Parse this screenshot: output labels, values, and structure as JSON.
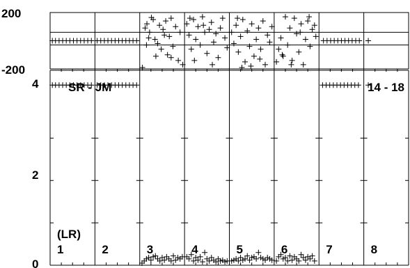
{
  "chart_data": {
    "type": "scatter",
    "panels": 8,
    "top_strip": {
      "ylim": [
        -200,
        200
      ],
      "yticks": [
        "200",
        "-200"
      ],
      "reference_lines": [
        60,
        -30
      ],
      "series": [
        {
          "panel": 1,
          "points": [
            [
              0.05,
              0
            ],
            [
              0.12,
              0
            ],
            [
              0.2,
              0
            ],
            [
              0.28,
              0
            ],
            [
              0.36,
              0
            ],
            [
              0.44,
              0
            ],
            [
              0.52,
              0
            ],
            [
              0.6,
              0
            ],
            [
              0.68,
              0
            ],
            [
              0.76,
              0
            ],
            [
              0.84,
              0
            ],
            [
              0.92,
              0
            ]
          ]
        },
        {
          "panel": 2,
          "points": [
            [
              0.05,
              0
            ],
            [
              0.13,
              0
            ],
            [
              0.21,
              0
            ],
            [
              0.29,
              0
            ],
            [
              0.37,
              0
            ],
            [
              0.45,
              0
            ],
            [
              0.53,
              0
            ],
            [
              0.61,
              0
            ],
            [
              0.69,
              0
            ],
            [
              0.77,
              0
            ],
            [
              0.85,
              0
            ],
            [
              0.93,
              0
            ]
          ]
        },
        {
          "panel": 3,
          "points": [
            [
              0.06,
              -190
            ],
            [
              0.12,
              90
            ],
            [
              0.16,
              120
            ],
            [
              0.22,
              60
            ],
            [
              0.26,
              165
            ],
            [
              0.3,
              150
            ],
            [
              0.34,
              10
            ],
            [
              0.4,
              -20
            ],
            [
              0.44,
              110
            ],
            [
              0.48,
              -60
            ],
            [
              0.52,
              80
            ],
            [
              0.58,
              140
            ],
            [
              0.62,
              -100
            ],
            [
              0.66,
              30
            ],
            [
              0.7,
              160
            ],
            [
              0.74,
              -40
            ],
            [
              0.8,
              100
            ],
            [
              0.86,
              -140
            ],
            [
              0.9,
              60
            ],
            [
              0.15,
              -30
            ],
            [
              0.2,
              20
            ],
            [
              0.36,
              -110
            ],
            [
              0.55,
              40
            ],
            [
              0.7,
              -120
            ],
            [
              0.96,
              -170
            ]
          ]
        },
        {
          "panel": 4,
          "points": [
            [
              0.05,
              120
            ],
            [
              0.1,
              40
            ],
            [
              0.15,
              -60
            ],
            [
              0.2,
              150
            ],
            [
              0.25,
              10
            ],
            [
              0.3,
              100
            ],
            [
              0.35,
              -30
            ],
            [
              0.4,
              170
            ],
            [
              0.45,
              60
            ],
            [
              0.5,
              -90
            ],
            [
              0.55,
              80
            ],
            [
              0.6,
              130
            ],
            [
              0.65,
              -10
            ],
            [
              0.7,
              50
            ],
            [
              0.75,
              -120
            ],
            [
              0.8,
              90
            ],
            [
              0.85,
              160
            ],
            [
              0.9,
              20
            ],
            [
              0.95,
              -50
            ],
            [
              0.22,
              -140
            ],
            [
              0.62,
              -170
            ],
            [
              0.42,
              110
            ],
            [
              0.12,
              160
            ]
          ]
        },
        {
          "panel": 5,
          "points": [
            [
              0.05,
              60
            ],
            [
              0.1,
              -20
            ],
            [
              0.15,
              110
            ],
            [
              0.2,
              -80
            ],
            [
              0.25,
              30
            ],
            [
              0.3,
              150
            ],
            [
              0.35,
              -150
            ],
            [
              0.4,
              70
            ],
            [
              0.45,
              -40
            ],
            [
              0.5,
              120
            ],
            [
              0.55,
              -110
            ],
            [
              0.6,
              10
            ],
            [
              0.65,
              90
            ],
            [
              0.7,
              -60
            ],
            [
              0.75,
              140
            ],
            [
              0.8,
              -170
            ],
            [
              0.85,
              40
            ],
            [
              0.9,
              -10
            ],
            [
              0.95,
              100
            ],
            [
              0.28,
              -190
            ],
            [
              0.48,
              -180
            ],
            [
              0.68,
              -130
            ],
            [
              0.18,
              160
            ]
          ]
        },
        {
          "panel": 6,
          "points": [
            [
              0.05,
              -150
            ],
            [
              0.1,
              -60
            ],
            [
              0.15,
              20
            ],
            [
              0.2,
              -110
            ],
            [
              0.25,
              170
            ],
            [
              0.3,
              -30
            ],
            [
              0.35,
              90
            ],
            [
              0.4,
              -140
            ],
            [
              0.45,
              160
            ],
            [
              0.5,
              50
            ],
            [
              0.55,
              -80
            ],
            [
              0.6,
              120
            ],
            [
              0.65,
              -170
            ],
            [
              0.7,
              10
            ],
            [
              0.75,
              140
            ],
            [
              0.8,
              -40
            ],
            [
              0.85,
              80
            ],
            [
              0.9,
              110
            ],
            [
              0.93,
              30
            ],
            [
              0.58,
              60
            ],
            [
              0.38,
              -170
            ],
            [
              0.18,
              -100
            ],
            [
              0.78,
              170
            ]
          ]
        },
        {
          "panel": 7,
          "points": [
            [
              0.1,
              0
            ],
            [
              0.18,
              0
            ],
            [
              0.26,
              0
            ],
            [
              0.34,
              0
            ],
            [
              0.42,
              0
            ],
            [
              0.5,
              0
            ],
            [
              0.58,
              0
            ],
            [
              0.66,
              0
            ],
            [
              0.74,
              0
            ],
            [
              0.82,
              0
            ],
            [
              0.9,
              0
            ]
          ]
        },
        {
          "panel": 8,
          "points": [
            [
              0.1,
              0
            ]
          ]
        }
      ]
    },
    "main": {
      "ylim": [
        0,
        4.6
      ],
      "yticks": [
        "4",
        "2",
        "0"
      ],
      "series": [
        {
          "panel": 1,
          "points": [
            [
              0.05,
              4.25
            ],
            [
              0.12,
              4.25
            ],
            [
              0.2,
              4.25
            ],
            [
              0.28,
              4.25
            ],
            [
              0.36,
              4.25
            ],
            [
              0.44,
              4.25
            ],
            [
              0.52,
              4.25
            ],
            [
              0.6,
              4.25
            ],
            [
              0.68,
              4.25
            ],
            [
              0.76,
              4.25
            ],
            [
              0.84,
              4.25
            ],
            [
              0.92,
              4.25
            ]
          ]
        },
        {
          "panel": 2,
          "points": [
            [
              0.05,
              4.25
            ],
            [
              0.13,
              4.25
            ],
            [
              0.21,
              4.25
            ],
            [
              0.29,
              4.25
            ],
            [
              0.37,
              4.25
            ],
            [
              0.45,
              4.25
            ],
            [
              0.53,
              4.25
            ],
            [
              0.61,
              4.25
            ],
            [
              0.69,
              4.25
            ],
            [
              0.77,
              4.25
            ],
            [
              0.85,
              4.25
            ],
            [
              0.93,
              4.25
            ]
          ]
        },
        {
          "panel": 3,
          "points": [
            [
              0.05,
              0.05
            ],
            [
              0.1,
              0.1
            ],
            [
              0.15,
              0.15
            ],
            [
              0.2,
              0.18
            ],
            [
              0.25,
              0.12
            ],
            [
              0.3,
              0.2
            ],
            [
              0.35,
              0.22
            ],
            [
              0.4,
              0.15
            ],
            [
              0.45,
              0.1
            ],
            [
              0.5,
              0.18
            ],
            [
              0.55,
              0.12
            ],
            [
              0.6,
              0.2
            ],
            [
              0.65,
              0.15
            ],
            [
              0.7,
              0.1
            ],
            [
              0.75,
              0.22
            ],
            [
              0.8,
              0.12
            ],
            [
              0.85,
              0.18
            ],
            [
              0.9,
              0.15
            ],
            [
              0.95,
              0.2
            ]
          ]
        },
        {
          "panel": 4,
          "points": [
            [
              0.05,
              0.2
            ],
            [
              0.1,
              0.15
            ],
            [
              0.15,
              0.25
            ],
            [
              0.2,
              0.1
            ],
            [
              0.25,
              0.18
            ],
            [
              0.3,
              0.12
            ],
            [
              0.35,
              0.2
            ],
            [
              0.4,
              0.08
            ],
            [
              0.45,
              0.3
            ],
            [
              0.5,
              0.15
            ],
            [
              0.55,
              0.1
            ],
            [
              0.6,
              0.18
            ],
            [
              0.65,
              0.12
            ],
            [
              0.7,
              0.08
            ],
            [
              0.75,
              0.15
            ],
            [
              0.8,
              0.1
            ],
            [
              0.85,
              0.12
            ],
            [
              0.9,
              0.08
            ],
            [
              0.95,
              0.1
            ]
          ]
        },
        {
          "panel": 5,
          "points": [
            [
              0.05,
              0.1
            ],
            [
              0.1,
              0.12
            ],
            [
              0.15,
              0.15
            ],
            [
              0.2,
              0.1
            ],
            [
              0.25,
              0.18
            ],
            [
              0.3,
              0.12
            ],
            [
              0.35,
              0.15
            ],
            [
              0.4,
              0.22
            ],
            [
              0.45,
              0.12
            ],
            [
              0.5,
              0.18
            ],
            [
              0.55,
              0.2
            ],
            [
              0.6,
              0.15
            ],
            [
              0.65,
              0.3
            ],
            [
              0.7,
              0.18
            ],
            [
              0.75,
              0.15
            ],
            [
              0.8,
              0.12
            ],
            [
              0.85,
              0.18
            ],
            [
              0.9,
              0.15
            ],
            [
              0.95,
              0.12
            ]
          ]
        },
        {
          "panel": 6,
          "points": [
            [
              0.05,
              0.1
            ],
            [
              0.1,
              0.2
            ],
            [
              0.15,
              0.25
            ],
            [
              0.2,
              0.15
            ],
            [
              0.25,
              0.18
            ],
            [
              0.3,
              0.1
            ],
            [
              0.35,
              0.22
            ],
            [
              0.4,
              0.12
            ],
            [
              0.45,
              0.2
            ],
            [
              0.5,
              0.15
            ],
            [
              0.55,
              0.1
            ],
            [
              0.6,
              0.25
            ],
            [
              0.65,
              0.18
            ],
            [
              0.7,
              0.12
            ],
            [
              0.75,
              0.2
            ],
            [
              0.8,
              0.15
            ],
            [
              0.85,
              0.22
            ],
            [
              0.9,
              0.1
            ]
          ]
        },
        {
          "panel": 7,
          "points": [
            [
              0.08,
              4.25
            ],
            [
              0.16,
              4.25
            ],
            [
              0.24,
              4.25
            ],
            [
              0.32,
              4.25
            ],
            [
              0.4,
              4.25
            ],
            [
              0.48,
              4.25
            ],
            [
              0.56,
              4.25
            ],
            [
              0.64,
              4.25
            ],
            [
              0.72,
              4.25
            ],
            [
              0.8,
              4.25
            ],
            [
              0.88,
              4.25
            ]
          ]
        },
        {
          "panel": 8,
          "points": [
            [
              0.1,
              4.25
            ]
          ]
        }
      ]
    },
    "panel_labels": [
      "1",
      "2",
      "3",
      "4",
      "5",
      "6",
      "7",
      "8"
    ],
    "annotations": {
      "top_left": "SR - JM",
      "top_right": "14 - 18",
      "lr": "(LR)"
    },
    "grid": false,
    "legend": "none"
  }
}
